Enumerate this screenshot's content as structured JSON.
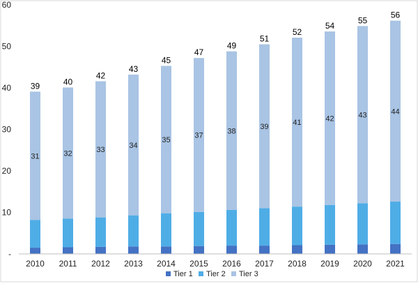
{
  "chart_data": {
    "type": "bar",
    "stacked": true,
    "categories": [
      "2010",
      "2011",
      "2012",
      "2013",
      "2014",
      "2015",
      "2016",
      "2017",
      "2018",
      "2019",
      "2020",
      "2021"
    ],
    "series": [
      {
        "name": "Tier 1",
        "color": "#4472C4",
        "values": [
          1.5,
          1.6,
          1.7,
          1.8,
          1.8,
          1.9,
          2.0,
          2.0,
          2.1,
          2.2,
          2.3,
          2.4
        ]
      },
      {
        "name": "Tier 2",
        "color": "#4FADE6",
        "values": [
          6.7,
          6.9,
          7.1,
          7.5,
          8.0,
          8.2,
          8.6,
          9.0,
          9.3,
          9.6,
          9.9,
          10.2
        ]
      },
      {
        "name": "Tier 3",
        "color": "#A9C4E4",
        "values": [
          30.9,
          31.6,
          32.8,
          33.9,
          35.5,
          37.1,
          38.2,
          39.5,
          40.7,
          41.8,
          42.7,
          43.6
        ]
      }
    ],
    "totals": [
      "39",
      "40",
      "42",
      "43",
      "45",
      "47",
      "49",
      "51",
      "52",
      "54",
      "55",
      "56"
    ],
    "tier3_labels": [
      "31",
      "32",
      "33",
      "34",
      "35",
      "37",
      "38",
      "39",
      "41",
      "42",
      "43",
      "44"
    ],
    "yticks": [
      "-",
      "10",
      "20",
      "30",
      "40",
      "50",
      "60"
    ],
    "ylim": [
      0,
      60
    ],
    "grid": false,
    "legend_position": "bottom-center"
  }
}
